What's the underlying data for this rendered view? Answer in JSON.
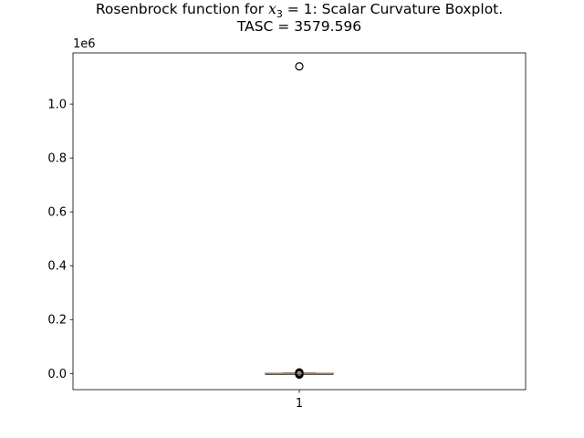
{
  "chart_data": {
    "type": "boxplot",
    "title_line1_prefix": "Rosenbrock function for ",
    "title_math_var": "x",
    "title_math_sub": "3",
    "title_line1_suffix": " = 1: Scalar Curvature Boxplot.",
    "title_line2": "TASC = 3579.596",
    "y_offset_label": "1e6",
    "ylim": [
      -0.06,
      1.19
    ],
    "y_ticks": [
      0.0,
      0.2,
      0.4,
      0.6,
      0.8,
      1.0
    ],
    "y_tick_labels": [
      "0.0",
      "0.2",
      "0.4",
      "0.6",
      "0.8",
      "1.0"
    ],
    "x_ticks": [
      1
    ],
    "x_tick_labels": [
      "1"
    ],
    "xlim": [
      0.5,
      1.5
    ],
    "box": {
      "position": 1,
      "q1": -0.0005,
      "median": 0.0,
      "q3": 0.0005,
      "whisker_low": -0.0012,
      "whisker_high": 0.0012
    },
    "outliers": [
      1.14,
      0.004,
      0.0025,
      -0.0025,
      -0.004,
      0.002,
      -0.002
    ],
    "colors": {
      "median": "#ff7f0e",
      "box": "#000000",
      "outlier": "#000000"
    }
  }
}
